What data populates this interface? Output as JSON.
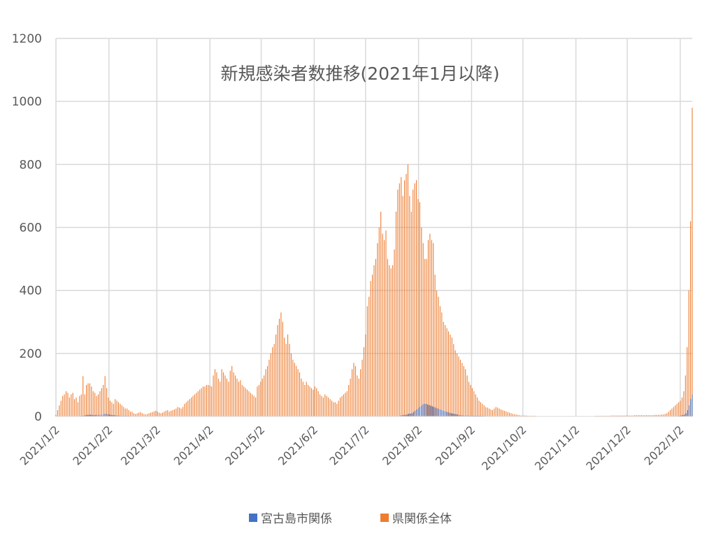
{
  "chart_data": {
    "type": "bar",
    "title": "新規感染者数推移(2021年1月以降)",
    "xlabel": "",
    "ylabel": "",
    "ylim": [
      0,
      1200
    ],
    "yticks": [
      0,
      200,
      400,
      600,
      800,
      1000,
      1200
    ],
    "start_date": "2021/1/2",
    "end_date": "2022/1/9",
    "x_tick_labels": [
      "2021/1/2",
      "2021/2/2",
      "2021/3/2",
      "2021/4/2",
      "2021/5/2",
      "2021/6/2",
      "2021/7/2",
      "2021/8/2",
      "2021/9/2",
      "2021/10/2",
      "2021/11/2",
      "2021/12/2",
      "2022/1/2"
    ],
    "legend_position": "bottom",
    "grid": true,
    "series": [
      {
        "name": "宮古島市関係",
        "color": "#4472C4",
        "values": [
          0,
          0,
          0,
          0,
          0,
          0,
          0,
          0,
          0,
          0,
          0,
          0,
          0,
          0,
          0,
          0,
          2,
          2,
          3,
          4,
          5,
          5,
          5,
          5,
          4,
          5,
          5,
          5,
          5,
          5,
          6,
          8,
          8,
          7,
          6,
          5,
          4,
          4,
          3,
          3,
          3,
          2,
          2,
          2,
          2,
          2,
          2,
          1,
          1,
          1,
          1,
          1,
          1,
          1,
          1,
          1,
          1,
          1,
          1,
          1,
          1,
          1,
          1,
          1,
          1,
          1,
          1,
          1,
          1,
          1,
          1,
          1,
          1,
          1,
          1,
          1,
          1,
          1,
          1,
          1,
          1,
          1,
          1,
          1,
          1,
          1,
          1,
          1,
          1,
          1,
          1,
          1,
          1,
          1,
          1,
          1,
          1,
          1,
          1,
          1,
          1,
          1,
          1,
          1,
          1,
          1,
          1,
          1,
          1,
          1,
          1,
          1,
          1,
          1,
          1,
          1,
          1,
          1,
          1,
          1,
          1,
          1,
          1,
          1,
          1,
          1,
          1,
          1,
          1,
          1,
          1,
          1,
          1,
          1,
          1,
          1,
          1,
          1,
          1,
          1,
          1,
          1,
          1,
          1,
          1,
          1,
          1,
          1,
          1,
          1,
          1,
          1,
          1,
          1,
          1,
          1,
          1,
          1,
          1,
          1,
          1,
          1,
          1,
          1,
          1,
          1,
          1,
          1,
          1,
          1,
          1,
          1,
          1,
          1,
          1,
          1,
          1,
          1,
          1,
          1,
          1,
          1,
          1,
          1,
          1,
          1,
          1,
          1,
          1,
          1,
          1,
          1,
          1,
          1,
          1,
          1,
          1,
          1,
          1,
          1,
          1,
          1,
          1,
          1,
          1,
          1,
          1,
          1,
          1,
          1,
          1,
          1,
          1,
          1,
          1,
          1,
          1,
          1,
          1,
          4,
          4,
          5,
          5,
          6,
          8,
          9,
          10,
          14,
          18,
          22,
          26,
          30,
          34,
          38,
          40,
          40,
          38,
          36,
          34,
          32,
          30,
          28,
          26,
          24,
          22,
          20,
          18,
          16,
          15,
          14,
          12,
          10,
          9,
          8,
          7,
          6,
          5,
          4,
          4,
          3,
          3,
          3,
          3,
          2,
          2,
          2,
          2,
          2,
          2,
          2,
          2,
          2,
          2,
          1,
          1,
          1,
          1,
          1,
          1,
          1,
          1,
          1,
          1,
          1,
          1,
          1,
          1,
          1,
          1,
          1,
          1,
          1,
          1,
          1,
          1,
          1,
          1,
          1,
          1,
          1,
          1,
          1,
          1,
          1,
          1,
          1,
          1,
          1,
          1,
          1,
          1,
          1,
          1,
          1,
          1,
          1,
          1,
          1,
          1,
          1,
          1,
          1,
          1,
          1,
          1,
          1,
          1,
          1,
          1,
          1,
          1,
          1,
          1,
          1,
          1,
          1,
          1,
          1,
          1,
          1,
          1,
          1,
          1,
          1,
          1,
          1,
          1,
          1,
          1,
          1,
          1,
          1,
          1,
          1,
          1,
          1,
          1,
          1,
          1,
          1,
          1,
          1,
          1,
          1,
          1,
          1,
          1,
          1,
          1,
          1,
          1,
          1,
          1,
          1,
          1,
          1,
          1,
          1,
          1,
          1,
          1,
          1,
          1,
          1,
          1,
          1,
          1,
          1,
          1,
          1,
          1,
          1,
          1,
          1,
          1,
          1,
          2,
          3,
          4,
          6,
          10,
          20,
          35,
          55,
          70
        ]
      },
      {
        "name": "県関係全体",
        "color": "#ED7D31",
        "values": [
          5,
          20,
          35,
          50,
          65,
          70,
          80,
          75,
          60,
          70,
          75,
          55,
          60,
          45,
          65,
          70,
          128,
          70,
          100,
          105,
          105,
          95,
          80,
          75,
          65,
          70,
          80,
          90,
          100,
          128,
          90,
          60,
          50,
          45,
          40,
          55,
          50,
          45,
          40,
          35,
          30,
          25,
          25,
          20,
          15,
          15,
          10,
          8,
          10,
          12,
          14,
          10,
          8,
          6,
          8,
          10,
          12,
          14,
          16,
          18,
          15,
          12,
          10,
          12,
          15,
          18,
          20,
          15,
          18,
          20,
          22,
          25,
          30,
          28,
          25,
          30,
          40,
          45,
          50,
          55,
          60,
          65,
          70,
          75,
          80,
          85,
          90,
          95,
          95,
          100,
          100,
          98,
          95,
          130,
          150,
          140,
          120,
          110,
          150,
          140,
          130,
          120,
          110,
          145,
          160,
          140,
          130,
          120,
          110,
          115,
          100,
          95,
          90,
          85,
          80,
          75,
          70,
          65,
          60,
          95,
          100,
          110,
          120,
          130,
          150,
          160,
          180,
          200,
          220,
          230,
          260,
          290,
          310,
          330,
          300,
          250,
          230,
          260,
          230,
          200,
          180,
          170,
          160,
          150,
          140,
          120,
          110,
          100,
          110,
          100,
          95,
          90,
          85,
          95,
          90,
          80,
          70,
          65,
          60,
          70,
          65,
          60,
          55,
          50,
          45,
          45,
          40,
          50,
          60,
          65,
          70,
          75,
          80,
          100,
          120,
          150,
          170,
          160,
          130,
          120,
          150,
          180,
          220,
          260,
          350,
          380,
          430,
          450,
          480,
          500,
          550,
          600,
          650,
          580,
          560,
          590,
          500,
          480,
          470,
          480,
          530,
          650,
          720,
          740,
          760,
          700,
          750,
          770,
          800,
          700,
          650,
          720,
          740,
          750,
          690,
          680,
          600,
          550,
          500,
          500,
          560,
          580,
          560,
          550,
          450,
          400,
          380,
          350,
          330,
          300,
          290,
          280,
          270,
          260,
          250,
          230,
          210,
          200,
          190,
          180,
          170,
          160,
          150,
          130,
          110,
          100,
          90,
          80,
          70,
          60,
          50,
          45,
          40,
          35,
          30,
          28,
          25,
          22,
          20,
          25,
          30,
          28,
          25,
          22,
          20,
          18,
          16,
          14,
          12,
          10,
          8,
          7,
          6,
          5,
          4,
          3,
          3,
          3,
          3,
          2,
          2,
          2,
          2,
          2,
          1,
          1,
          1,
          1,
          1,
          1,
          1,
          1,
          1,
          1,
          1,
          1,
          1,
          1,
          1,
          1,
          1,
          1,
          1,
          1,
          1,
          1,
          1,
          1,
          1,
          1,
          1,
          1,
          1,
          1,
          1,
          1,
          1,
          1,
          1,
          2,
          2,
          2,
          2,
          2,
          2,
          2,
          2,
          2,
          3,
          3,
          3,
          3,
          3,
          3,
          3,
          3,
          3,
          3,
          3,
          3,
          3,
          3,
          4,
          4,
          4,
          4,
          4,
          4,
          4,
          4,
          4,
          4,
          4,
          4,
          5,
          5,
          5,
          5,
          6,
          6,
          8,
          10,
          15,
          20,
          25,
          30,
          35,
          40,
          45,
          50,
          60,
          80,
          130,
          220,
          400,
          620,
          980
        ]
      }
    ]
  }
}
